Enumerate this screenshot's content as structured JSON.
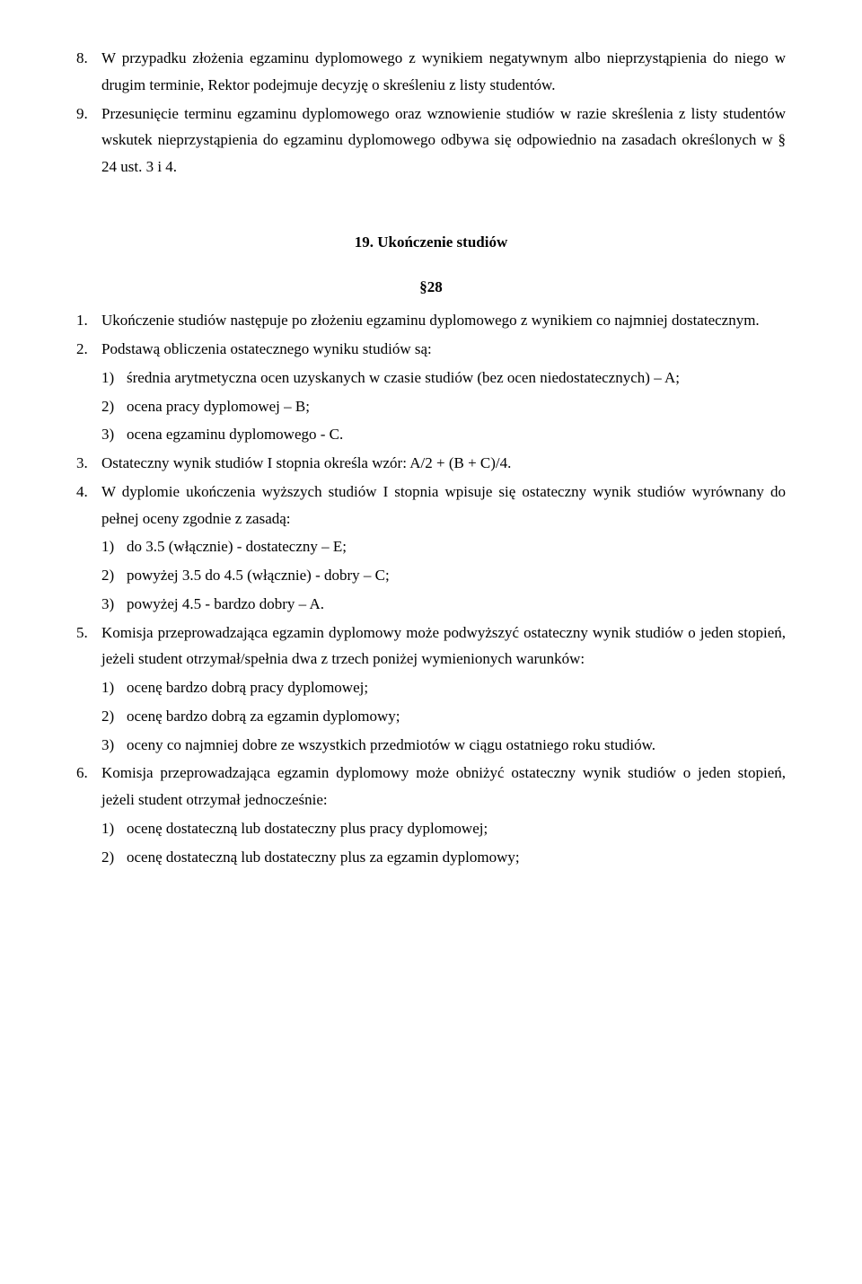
{
  "p8": {
    "num": "8.",
    "text": "W przypadku złożenia egzaminu dyplomowego z wynikiem negatywnym albo nieprzystąpienia do niego w drugim terminie, Rektor podejmuje decyzję o skreśleniu z listy studentów."
  },
  "p9": {
    "num": "9.",
    "text": "Przesunięcie terminu egzaminu dyplomowego oraz wznowienie studiów w razie skreślenia z listy studentów wskutek nieprzystąpienia do egzaminu dyplomowego odbywa się odpowiednio na zasadach określonych w § 24 ust. 3 i 4."
  },
  "heading": "19. Ukończenie studiów",
  "section": "§28",
  "s1": {
    "num": "1.",
    "text": "Ukończenie studiów następuje po złożeniu egzaminu dyplomowego z wynikiem co najmniej dostatecznym."
  },
  "s2": {
    "num": "2.",
    "text": "Podstawą obliczenia ostatecznego wyniku studiów są:",
    "items": [
      {
        "n": "1)",
        "t": "średnia arytmetyczna ocen uzyskanych w czasie studiów (bez ocen niedostatecznych) – A;"
      },
      {
        "n": "2)",
        "t": "ocena pracy dyplomowej – B;"
      },
      {
        "n": "3)",
        "t": "ocena egzaminu dyplomowego - C."
      }
    ]
  },
  "s3": {
    "num": "3.",
    "text": "Ostateczny wynik studiów I stopnia określa wzór: A/2 + (B + C)/4."
  },
  "s4": {
    "num": "4.",
    "text": "W dyplomie ukończenia wyższych studiów I stopnia wpisuje się ostateczny wynik studiów wyrównany do pełnej oceny zgodnie z zasadą:",
    "items": [
      {
        "n": "1)",
        "t": "do 3.5 (włącznie) - dostateczny – E;"
      },
      {
        "n": "2)",
        "t": "powyżej 3.5 do 4.5 (włącznie) - dobry – C;"
      },
      {
        "n": "3)",
        "t": "powyżej 4.5 - bardzo dobry – A."
      }
    ]
  },
  "s5": {
    "num": "5.",
    "text": "Komisja przeprowadzająca egzamin dyplomowy może podwyższyć ostateczny wynik studiów o jeden stopień, jeżeli student otrzymał/spełnia dwa z trzech poniżej wymienionych warunków:",
    "items": [
      {
        "n": "1)",
        "t": "ocenę bardzo dobrą pracy dyplomowej;"
      },
      {
        "n": "2)",
        "t": "ocenę bardzo dobrą za egzamin dyplomowy;"
      },
      {
        "n": "3)",
        "t": "oceny co najmniej dobre ze wszystkich przedmiotów w ciągu ostatniego roku studiów."
      }
    ]
  },
  "s6": {
    "num": "6.",
    "text": "Komisja przeprowadzająca egzamin dyplomowy może obniżyć ostateczny wynik studiów o jeden stopień, jeżeli student otrzymał jednocześnie:",
    "items": [
      {
        "n": "1)",
        "t": "ocenę dostateczną lub dostateczny plus pracy dyplomowej;"
      },
      {
        "n": "2)",
        "t": "ocenę dostateczną lub dostateczny plus za egzamin dyplomowy;"
      }
    ]
  }
}
